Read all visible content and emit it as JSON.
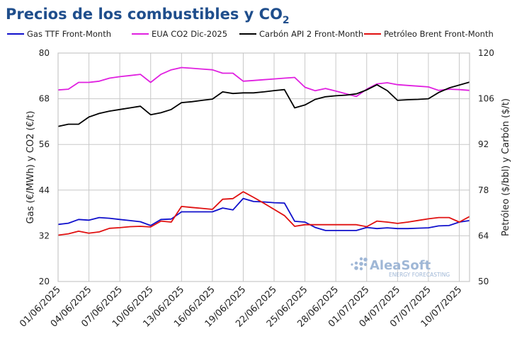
{
  "title": {
    "main": "Precios de los combustibles y CO",
    "subscript": "2"
  },
  "watermark": {
    "name": "AleaSoft",
    "tagline": "ENERGY FORECASTING"
  },
  "chart_data": {
    "type": "line",
    "title": "Precios de los combustibles y CO2",
    "x": [
      "01/06/2025",
      "02/06/2025",
      "03/06/2025",
      "04/06/2025",
      "05/06/2025",
      "06/06/2025",
      "07/06/2025",
      "08/06/2025",
      "09/06/2025",
      "10/06/2025",
      "11/06/2025",
      "12/06/2025",
      "13/06/2025",
      "14/06/2025",
      "15/06/2025",
      "16/06/2025",
      "17/06/2025",
      "18/06/2025",
      "19/06/2025",
      "20/06/2025",
      "21/06/2025",
      "22/06/2025",
      "23/06/2025",
      "24/06/2025",
      "25/06/2025",
      "26/06/2025",
      "27/06/2025",
      "28/06/2025",
      "29/06/2025",
      "30/06/2025",
      "01/07/2025",
      "02/07/2025",
      "03/07/2025",
      "04/07/2025",
      "05/07/2025",
      "06/07/2025",
      "07/07/2025",
      "08/07/2025",
      "09/07/2025",
      "10/07/2025",
      "11/07/2025"
    ],
    "x_tick_labels": [
      "01/06/2025",
      "04/06/2025",
      "07/06/2025",
      "10/06/2025",
      "13/06/2025",
      "16/06/2025",
      "19/06/2025",
      "22/06/2025",
      "25/06/2025",
      "28/06/2025",
      "01/07/2025",
      "04/07/2025",
      "07/07/2025",
      "10/07/2025"
    ],
    "y_left": {
      "label": "Gas (€/MWh) y CO2 (€/t)",
      "range": [
        20,
        80
      ],
      "ticks": [
        20,
        32,
        44,
        56,
        68,
        80
      ]
    },
    "y_right": {
      "label": "Petróleo ($/bbl) y Carbón ($/t)",
      "range": [
        50,
        120
      ],
      "ticks": [
        50,
        64,
        78,
        92,
        106,
        120
      ]
    },
    "grid": true,
    "legend_position": "top",
    "series": [
      {
        "name": "Gas TTF Front-Month",
        "axis": "left",
        "color": "#1010CC",
        "values": [
          35.0,
          35.3,
          36.3,
          36.1,
          36.8,
          36.6,
          36.3,
          36.0,
          35.7,
          34.7,
          36.3,
          36.4,
          38.3,
          38.3,
          38.3,
          38.3,
          39.3,
          38.8,
          41.8,
          41.0,
          40.9,
          40.7,
          40.6,
          35.8,
          35.6,
          34.2,
          33.4,
          33.4,
          33.4,
          33.4,
          34.2,
          33.9,
          34.1,
          33.9,
          33.9,
          34.0,
          34.1,
          34.6,
          34.7,
          35.6,
          36.0
        ]
      },
      {
        "name": "EUA CO2 Dic-2025",
        "axis": "left",
        "color": "#E020E0",
        "values": [
          70.3,
          70.5,
          72.3,
          72.3,
          72.6,
          73.4,
          73.8,
          74.1,
          74.4,
          72.3,
          74.4,
          75.6,
          76.2,
          76.0,
          75.8,
          75.6,
          74.7,
          74.7,
          72.6,
          72.8,
          73.0,
          73.2,
          73.4,
          73.6,
          71.0,
          70.1,
          70.7,
          70.0,
          69.3,
          68.6,
          70.5,
          71.9,
          72.2,
          71.7,
          71.5,
          71.3,
          71.1,
          70.2,
          70.5,
          70.4,
          70.2
        ]
      },
      {
        "name": "Carbón API 2 Front-Month",
        "axis": "right",
        "color": "#000000",
        "values": [
          97.5,
          98.2,
          98.2,
          100.4,
          101.5,
          102.2,
          102.7,
          103.2,
          103.7,
          101.1,
          101.7,
          102.7,
          104.8,
          105.1,
          105.5,
          105.9,
          108.1,
          107.6,
          107.8,
          107.8,
          108.1,
          108.5,
          108.8,
          103.2,
          104.1,
          105.8,
          106.6,
          106.9,
          107.1,
          107.5,
          108.7,
          110.3,
          108.5,
          105.5,
          105.7,
          105.8,
          106.0,
          107.9,
          109.3,
          110.2,
          111.1
        ]
      },
      {
        "name": "Petróleo Brent Front-Month",
        "axis": "right",
        "color": "#E01010",
        "values": [
          64.2,
          64.6,
          65.4,
          64.8,
          65.2,
          66.3,
          66.5,
          66.8,
          66.9,
          66.7,
          68.5,
          68.2,
          73.0,
          72.7,
          72.4,
          72.1,
          75.2,
          75.4,
          77.5,
          75.8,
          74.0,
          72.1,
          70.2,
          66.9,
          67.4,
          67.4,
          67.4,
          67.4,
          67.4,
          67.4,
          66.8,
          68.5,
          68.2,
          67.8,
          68.2,
          68.7,
          69.2,
          69.6,
          69.6,
          68.2,
          69.9
        ]
      }
    ]
  }
}
